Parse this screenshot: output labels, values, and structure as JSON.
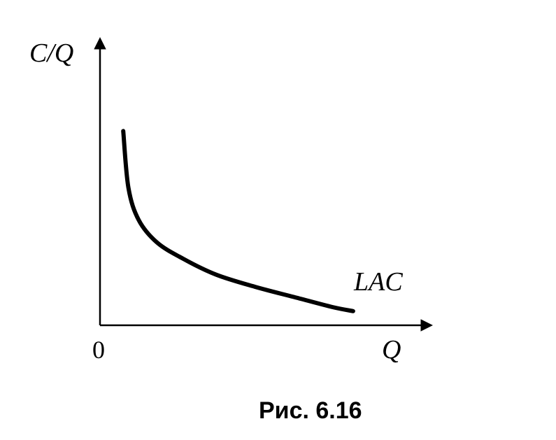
{
  "chart_data": {
    "type": "line",
    "xlabel": "Q",
    "ylabel": "C/Q",
    "origin_label": "0",
    "grid": false,
    "series": [
      {
        "name": "LAC",
        "x": [
          0.09,
          0.11,
          0.15,
          0.22,
          0.32,
          0.45,
          0.6,
          0.75,
          0.9,
          0.98
        ],
        "y": [
          0.96,
          0.68,
          0.52,
          0.41,
          0.33,
          0.25,
          0.19,
          0.14,
          0.09,
          0.07
        ]
      }
    ],
    "xlim": [
      0,
      1.27
    ],
    "ylim": [
      0,
      1.4
    ]
  },
  "caption": "Рис. 6.16"
}
